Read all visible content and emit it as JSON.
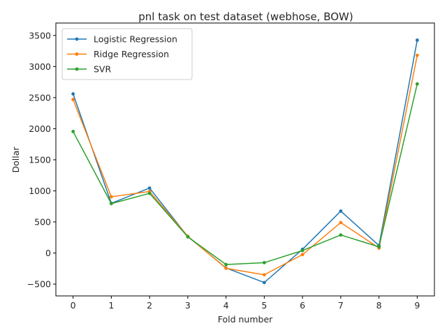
{
  "chart_data": {
    "type": "line",
    "title": "pnl task on test dataset (webhose, BOW)",
    "xlabel": "Fold number",
    "ylabel": "Dollar",
    "x": [
      0,
      1,
      2,
      3,
      4,
      5,
      6,
      7,
      8,
      9
    ],
    "xticks": [
      "0",
      "1",
      "2",
      "3",
      "4",
      "5",
      "6",
      "7",
      "8",
      "9"
    ],
    "yticks": [
      "−500",
      "0",
      "500",
      "1000",
      "1500",
      "2000",
      "2500",
      "3000",
      "3500"
    ],
    "xlim": [
      -0.45,
      9.45
    ],
    "ylim": [
      -690,
      3700
    ],
    "grid": false,
    "legend_position": "top-left",
    "series": [
      {
        "name": "Logistic Regression",
        "color": "#1f77b4",
        "values": [
          2560,
          800,
          1045,
          265,
          -240,
          -475,
          60,
          675,
          120,
          3425
        ]
      },
      {
        "name": "Ridge Regression",
        "color": "#ff7f0e",
        "values": [
          2470,
          905,
          990,
          270,
          -245,
          -350,
          -25,
          490,
          80,
          3180
        ]
      },
      {
        "name": "SVR",
        "color": "#2ca02c",
        "values": [
          1955,
          795,
          960,
          260,
          -185,
          -155,
          40,
          290,
          100,
          2720
        ]
      }
    ]
  }
}
